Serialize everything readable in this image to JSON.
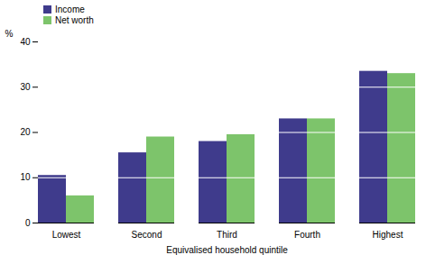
{
  "chart_data": {
    "type": "bar",
    "categories": [
      "Lowest",
      "Second",
      "Third",
      "Fourth",
      "Highest"
    ],
    "series": [
      {
        "name": "Income",
        "color": "#3f3b8c",
        "values": [
          10.5,
          15.5,
          18,
          23,
          33.5
        ]
      },
      {
        "name": "Net worth",
        "color": "#7dc46b",
        "values": [
          6,
          19,
          19.5,
          23,
          33
        ]
      }
    ],
    "x_label": "Equivalised household quintile",
    "y_label": "%",
    "ylim": [
      0,
      40
    ],
    "yticks": [
      0,
      10,
      20,
      30,
      40
    ],
    "grid": true,
    "legend": "top-left"
  }
}
